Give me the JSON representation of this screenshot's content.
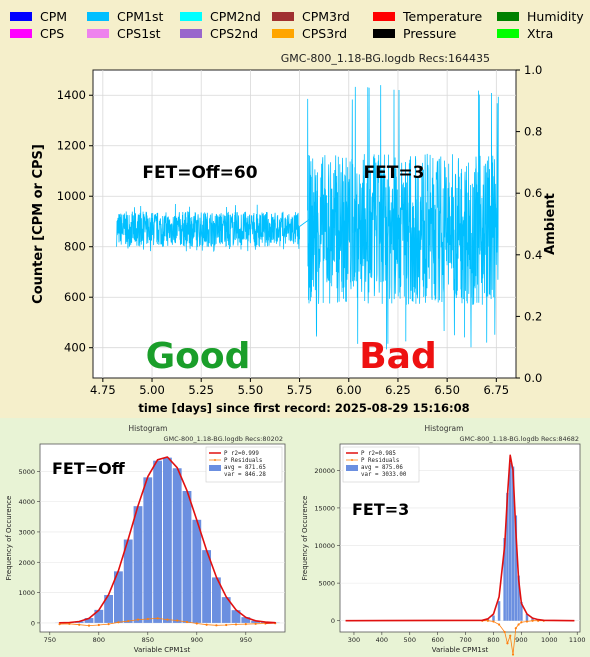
{
  "main_panel": {
    "background": "#f5efcb",
    "legend": [
      {
        "label": "CPM",
        "color": "#0000ff"
      },
      {
        "label": "CPM1st",
        "color": "#00bfff"
      },
      {
        "label": "CPM2nd",
        "color": "#00ffff"
      },
      {
        "label": "CPM3rd",
        "color": "#a03030"
      },
      {
        "label": "Temperature",
        "color": "#ff0000"
      },
      {
        "label": "Humidity",
        "color": "#008000"
      },
      {
        "label": "CPS",
        "color": "#ff00ff"
      },
      {
        "label": "CPS1st",
        "color": "#ee82ee"
      },
      {
        "label": "CPS2nd",
        "color": "#9966cc"
      },
      {
        "label": "CPS3rd",
        "color": "#ffa500"
      },
      {
        "label": "Pressure",
        "color": "#000000"
      },
      {
        "label": "Xtra",
        "color": "#00ff00"
      }
    ],
    "file_info": "GMC-800_1.18-BG.logdb    Recs:164435",
    "annotations": {
      "left_label": "FET=Off=60",
      "right_label": "FET=3",
      "good": "Good",
      "bad": "Bad",
      "good_color": "#1a9e2a",
      "bad_color": "#ee1111"
    }
  },
  "hist_left": {
    "title": "Histogram",
    "info": "GMC-800_1.18-BG.logdb   Recs:80202",
    "overlay": "FET=Off",
    "legend": [
      "P r2=0.999",
      "P Residuals",
      "avg = 871.65",
      "var = 846.28"
    ]
  },
  "hist_right": {
    "title": "Histogram",
    "info": "GMC-800_1.18-BG.logdb   Recs:84682",
    "overlay": "FET=3",
    "legend": [
      "P r2=0.985",
      "P Residuals",
      "avg = 875.06",
      "var = 3033.00"
    ]
  },
  "chart_data": [
    {
      "type": "line",
      "series": [
        {
          "name": "CPM1st",
          "color": "#00bfff"
        }
      ],
      "segments": [
        {
          "x_start": 4.82,
          "x_end": 5.75,
          "center": 870,
          "half_range": 70,
          "max_spike": 970,
          "min_spike": 780
        },
        {
          "x_start": 5.75,
          "x_end": 5.82,
          "values": [
            880,
            920
          ]
        },
        {
          "x_start": 5.79,
          "x_end": 6.76,
          "center": 870,
          "half_range": 300,
          "max_spike": 1450,
          "min_spike": 390
        }
      ],
      "xlabel": "time [days] since first record: 2025-08-29 15:16:08",
      "ylabel": "Counter  [CPM or CPS]",
      "y2label": "Ambient",
      "xlim": [
        4.7,
        6.85
      ],
      "ylim": [
        280,
        1500
      ],
      "y2lim": [
        0.0,
        1.0
      ],
      "xticks": [
        4.75,
        5.0,
        5.25,
        5.5,
        5.75,
        6.0,
        6.25,
        6.5,
        6.75
      ],
      "xtick_labels": [
        "4.75",
        "5.00",
        "5.25",
        "5.50",
        "5.75",
        "6.00",
        "6.25",
        "6.50",
        "6.75"
      ],
      "yticks": [
        400,
        600,
        800,
        1000,
        1200,
        1400
      ],
      "y2ticks": [
        0.0,
        0.2,
        0.4,
        0.6,
        0.8,
        1.0
      ],
      "y2tick_labels": [
        "0.0",
        "0.2",
        "0.4",
        "0.6",
        "0.8",
        "1.0"
      ],
      "grid": true
    },
    {
      "type": "bar",
      "bin_centers": [
        760,
        770,
        780,
        790,
        800,
        810,
        820,
        830,
        840,
        850,
        860,
        870,
        880,
        890,
        900,
        910,
        920,
        930,
        940,
        950,
        960,
        970,
        980
      ],
      "values": [
        5,
        15,
        50,
        160,
        430,
        920,
        1700,
        2750,
        3850,
        4800,
        5350,
        5450,
        5100,
        4350,
        3400,
        2400,
        1500,
        850,
        420,
        190,
        70,
        25,
        8
      ],
      "fit_curve": [
        3,
        12,
        45,
        150,
        420,
        930,
        1720,
        2760,
        3860,
        4820,
        5380,
        5470,
        5120,
        4360,
        3390,
        2390,
        1510,
        860,
        430,
        180,
        70,
        25,
        8
      ],
      "residuals": [
        -40,
        -30,
        -60,
        -90,
        -70,
        -40,
        20,
        60,
        110,
        130,
        150,
        110,
        80,
        30,
        -20,
        -60,
        -80,
        -70,
        -50,
        -40,
        -30,
        -20,
        -10
      ],
      "xlabel": "Variable CPM1st",
      "ylabel": "Frequency of Occurence",
      "xlim": [
        740,
        990
      ],
      "ylim": [
        -300,
        5900
      ],
      "xticks": [
        750,
        800,
        850,
        900,
        950
      ],
      "yticks": [
        0,
        1000,
        2000,
        3000,
        4000,
        5000
      ],
      "legend_placement": "top-right"
    },
    {
      "type": "bar",
      "bin_centers": [
        760,
        780,
        800,
        820,
        840,
        850,
        860,
        870,
        880,
        890,
        900,
        920,
        940,
        960,
        980
      ],
      "values": [
        100,
        300,
        700,
        2600,
        11000,
        17000,
        21000,
        20500,
        14000,
        6000,
        2500,
        900,
        400,
        150,
        50
      ],
      "fit_curve": [
        50,
        250,
        900,
        3200,
        10000,
        16500,
        22000,
        20000,
        12000,
        5500,
        2300,
        900,
        350,
        150,
        50
      ],
      "residuals": [
        0,
        0,
        -100,
        -500,
        -1500,
        -3000,
        -2000,
        -4500,
        -1000,
        -500,
        -200,
        -100,
        0,
        0,
        0
      ],
      "xlabel": "Variable CPM1st",
      "ylabel": "Frequency of Occurence",
      "xlim": [
        250,
        1110
      ],
      "ylim": [
        -1500,
        23500
      ],
      "xticks": [
        300,
        400,
        500,
        600,
        700,
        800,
        900,
        1000,
        1100
      ],
      "yticks": [
        0,
        5000,
        10000,
        15000,
        20000
      ],
      "legend_placement": "top-left"
    }
  ]
}
